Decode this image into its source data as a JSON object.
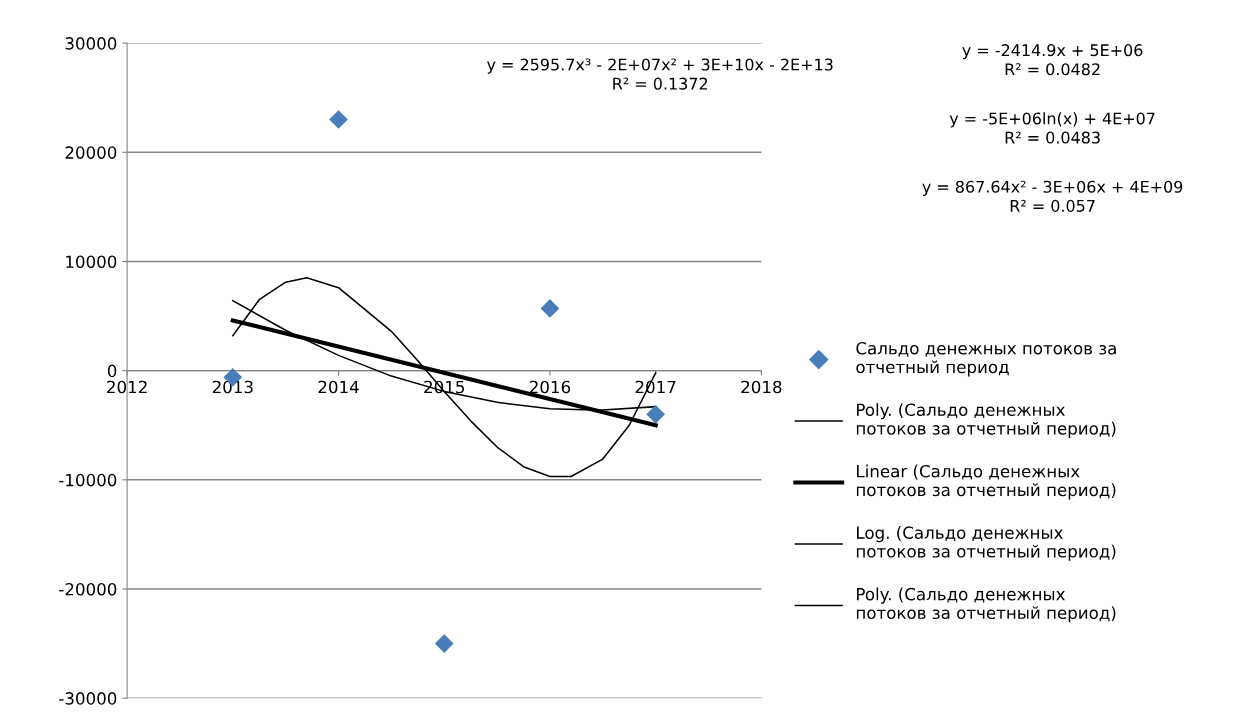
{
  "chart_data": {
    "type": "scatter",
    "xlim": [
      2012,
      2018
    ],
    "xticks": [
      2012,
      2013,
      2014,
      2015,
      2016,
      2017,
      2018
    ],
    "ylim": [
      -30000,
      30000
    ],
    "yticks": [
      -30000,
      -20000,
      -10000,
      0,
      10000,
      20000,
      30000
    ],
    "grid": "y",
    "legend": "right",
    "series": [
      {
        "name": "Сальдо денежных потоков за отчетный период",
        "marker": "diamond",
        "color": "#4a7ebb",
        "x": [
          2013,
          2014,
          2015,
          2016,
          2017
        ],
        "values": [
          -600,
          23000,
          -25000,
          5700,
          -4000
        ]
      },
      {
        "name": "Poly. (Сальдо денежных потоков за отчетный период)",
        "type": "line",
        "color": "#000000",
        "x": [
          2013,
          2013.25,
          2013.5,
          2013.7,
          2014,
          2014.5,
          2014.75,
          2015,
          2015.25,
          2015.5,
          2015.75,
          2016,
          2016.2,
          2016.5,
          2016.75,
          2017
        ],
        "values": [
          3200,
          6500,
          8100,
          8500,
          7600,
          3600,
          900,
          -1900,
          -4600,
          -7000,
          -8800,
          -9700,
          -9700,
          -8100,
          -5000,
          -200
        ]
      },
      {
        "name": "Linear (Сальдо денежных потоков за отчетный период)",
        "type": "line",
        "color": "#000000",
        "x": [
          2013,
          2017
        ],
        "values": [
          4600,
          -5000
        ]
      },
      {
        "name": "Log. (Сальдо денежных потоков за отчетный период)",
        "type": "line",
        "color": "#000000"
      },
      {
        "name": "Poly. (Сальдо денежных потоков за отчетный период)",
        "type": "line",
        "color": "#000000",
        "x": [
          2013,
          2013.5,
          2014,
          2014.5,
          2015,
          2015.5,
          2016,
          2016.4,
          2016.5,
          2017
        ],
        "values": [
          6400,
          3700,
          1400,
          -500,
          -1900,
          -2900,
          -3500,
          -3600,
          -3600,
          -3300
        ]
      }
    ],
    "annotations": [
      "y = 2595.7x³ - 2E+07x² + 3E+10x - 2E+13\nR² = 0.1372",
      "y = -2414.9x + 5E+06\nR² = 0.0482",
      "y = -5E+06ln(x) + 4E+07\nR² = 0.0483",
      "y = 867.64x² - 3E+06x + 4E+09\nR² = 0.057"
    ]
  }
}
